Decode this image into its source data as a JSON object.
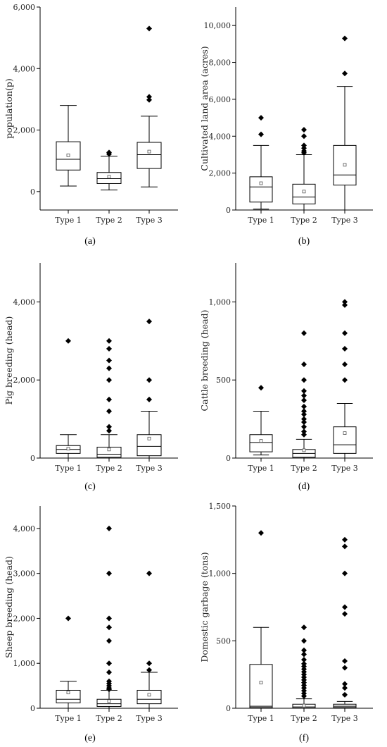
{
  "chart_data": [
    {
      "type": "box",
      "panel_label": "(a)",
      "ylabel": "population(p)",
      "ylim": [
        -600,
        6000
      ],
      "yticks": [
        0,
        2000,
        4000,
        6000
      ],
      "ytick_labels": [
        "0",
        "2,000",
        "4,000",
        "6,000"
      ],
      "categories": [
        "Type 1",
        "Type 2",
        "Type 3"
      ],
      "boxes": [
        {
          "min": 180,
          "q1": 700,
          "median": 1050,
          "q3": 1620,
          "max": 2800,
          "mean": 1180,
          "outliers": []
        },
        {
          "min": 50,
          "q1": 260,
          "median": 420,
          "q3": 620,
          "max": 1150,
          "mean": 480,
          "outliers": [
            1220,
            1270
          ]
        },
        {
          "min": 150,
          "q1": 750,
          "median": 1200,
          "q3": 1600,
          "max": 2450,
          "mean": 1300,
          "outliers": [
            2980,
            3080,
            5300
          ]
        }
      ]
    },
    {
      "type": "box",
      "panel_label": "(b)",
      "ylabel": "Cultivated land area (acres)",
      "ylim": [
        0,
        11000
      ],
      "yticks": [
        0,
        2000,
        4000,
        6000,
        8000,
        10000
      ],
      "ytick_labels": [
        "0",
        "2,000",
        "4,000",
        "6,000",
        "8,000",
        "10,000"
      ],
      "categories": [
        "Type 1",
        "Type 2",
        "Type 3"
      ],
      "boxes": [
        {
          "min": 50,
          "q1": 430,
          "median": 1250,
          "q3": 1800,
          "max": 3500,
          "mean": 1450,
          "outliers": [
            4100,
            5000
          ]
        },
        {
          "min": 0,
          "q1": 330,
          "median": 700,
          "q3": 1400,
          "max": 3000,
          "mean": 1000,
          "outliers": [
            3100,
            3200,
            3350,
            3500,
            4000,
            4350
          ]
        },
        {
          "min": 0,
          "q1": 1350,
          "median": 1900,
          "q3": 3500,
          "max": 6700,
          "mean": 2450,
          "outliers": [
            7400,
            9300
          ]
        }
      ]
    },
    {
      "type": "box",
      "panel_label": "(c)",
      "ylabel": "Pig breeding (head)",
      "ylim": [
        0,
        5000
      ],
      "yticks": [
        0,
        2000,
        4000
      ],
      "ytick_labels": [
        "0",
        "2,000",
        "4,000"
      ],
      "categories": [
        "Type 1",
        "Type 2",
        "Type 3"
      ],
      "boxes": [
        {
          "min": 0,
          "q1": 120,
          "median": 220,
          "q3": 320,
          "max": 600,
          "mean": 240,
          "outliers": [
            3000
          ]
        },
        {
          "min": 0,
          "q1": 20,
          "median": 100,
          "q3": 280,
          "max": 600,
          "mean": 220,
          "outliers": [
            700,
            800,
            1200,
            1500,
            2000,
            2300,
            2500,
            2800,
            3000
          ]
        },
        {
          "min": 0,
          "q1": 60,
          "median": 300,
          "q3": 600,
          "max": 1200,
          "mean": 500,
          "outliers": [
            1500,
            2000,
            3500
          ]
        }
      ]
    },
    {
      "type": "box",
      "panel_label": "(d)",
      "ylabel": "Cattle breeding (head)",
      "ylim": [
        0,
        1250
      ],
      "yticks": [
        0,
        500,
        1000
      ],
      "ytick_labels": [
        "0",
        "500",
        "1,000"
      ],
      "categories": [
        "Type 1",
        "Type 2",
        "Type 3"
      ],
      "boxes": [
        {
          "min": 20,
          "q1": 40,
          "median": 100,
          "q3": 150,
          "max": 300,
          "mean": 110,
          "outliers": [
            450
          ]
        },
        {
          "min": 0,
          "q1": 5,
          "median": 30,
          "q3": 55,
          "max": 120,
          "mean": 50,
          "outliers": [
            150,
            170,
            200,
            230,
            250,
            280,
            300,
            330,
            370,
            400,
            430,
            500,
            600,
            800
          ]
        },
        {
          "min": 0,
          "q1": 30,
          "median": 85,
          "q3": 200,
          "max": 350,
          "mean": 160,
          "outliers": [
            500,
            600,
            700,
            800,
            980,
            1000
          ]
        }
      ]
    },
    {
      "type": "box",
      "panel_label": "(e)",
      "ylabel": "Sheep breeding (head)",
      "ylim": [
        0,
        4500
      ],
      "yticks": [
        0,
        1000,
        2000,
        3000,
        4000
      ],
      "ytick_labels": [
        "0",
        "1,000",
        "2,000",
        "3,000",
        "4,000"
      ],
      "categories": [
        "Type 1",
        "Type 2",
        "Type 3"
      ],
      "boxes": [
        {
          "min": 0,
          "q1": 120,
          "median": 200,
          "q3": 400,
          "max": 600,
          "mean": 350,
          "outliers": [
            2000
          ]
        },
        {
          "min": 0,
          "q1": 40,
          "median": 100,
          "q3": 200,
          "max": 400,
          "mean": 160,
          "outliers": [
            420,
            450,
            500,
            550,
            600,
            800,
            1000,
            1500,
            1800,
            2000,
            3000,
            4000
          ]
        },
        {
          "min": 0,
          "q1": 100,
          "median": 200,
          "q3": 400,
          "max": 800,
          "mean": 300,
          "outliers": [
            850,
            1000,
            3000
          ]
        }
      ]
    },
    {
      "type": "box",
      "panel_label": "(f)",
      "ylabel": "Domestic garbage (tons)",
      "ylim": [
        0,
        1500
      ],
      "yticks": [
        0,
        500,
        1000,
        1500
      ],
      "ytick_labels": [
        "0",
        "500",
        "1,000",
        "1,500"
      ],
      "categories": [
        "Type 1",
        "Type 2",
        "Type 3"
      ],
      "boxes": [
        {
          "min": 0,
          "q1": 5,
          "median": 15,
          "q3": 325,
          "max": 600,
          "mean": 190,
          "outliers": [
            1300
          ]
        },
        {
          "min": 0,
          "q1": 2,
          "median": 10,
          "q3": 30,
          "max": 70,
          "mean": 20,
          "outliers": [
            90,
            110,
            130,
            150,
            170,
            190,
            210,
            230,
            250,
            270,
            290,
            310,
            330,
            360,
            400,
            430,
            500,
            600
          ]
        },
        {
          "min": 0,
          "q1": 5,
          "median": 15,
          "q3": 30,
          "max": 50,
          "mean": 100,
          "outliers": [
            100,
            150,
            180,
            300,
            350,
            700,
            750,
            1000,
            1200,
            1250
          ]
        }
      ]
    }
  ]
}
